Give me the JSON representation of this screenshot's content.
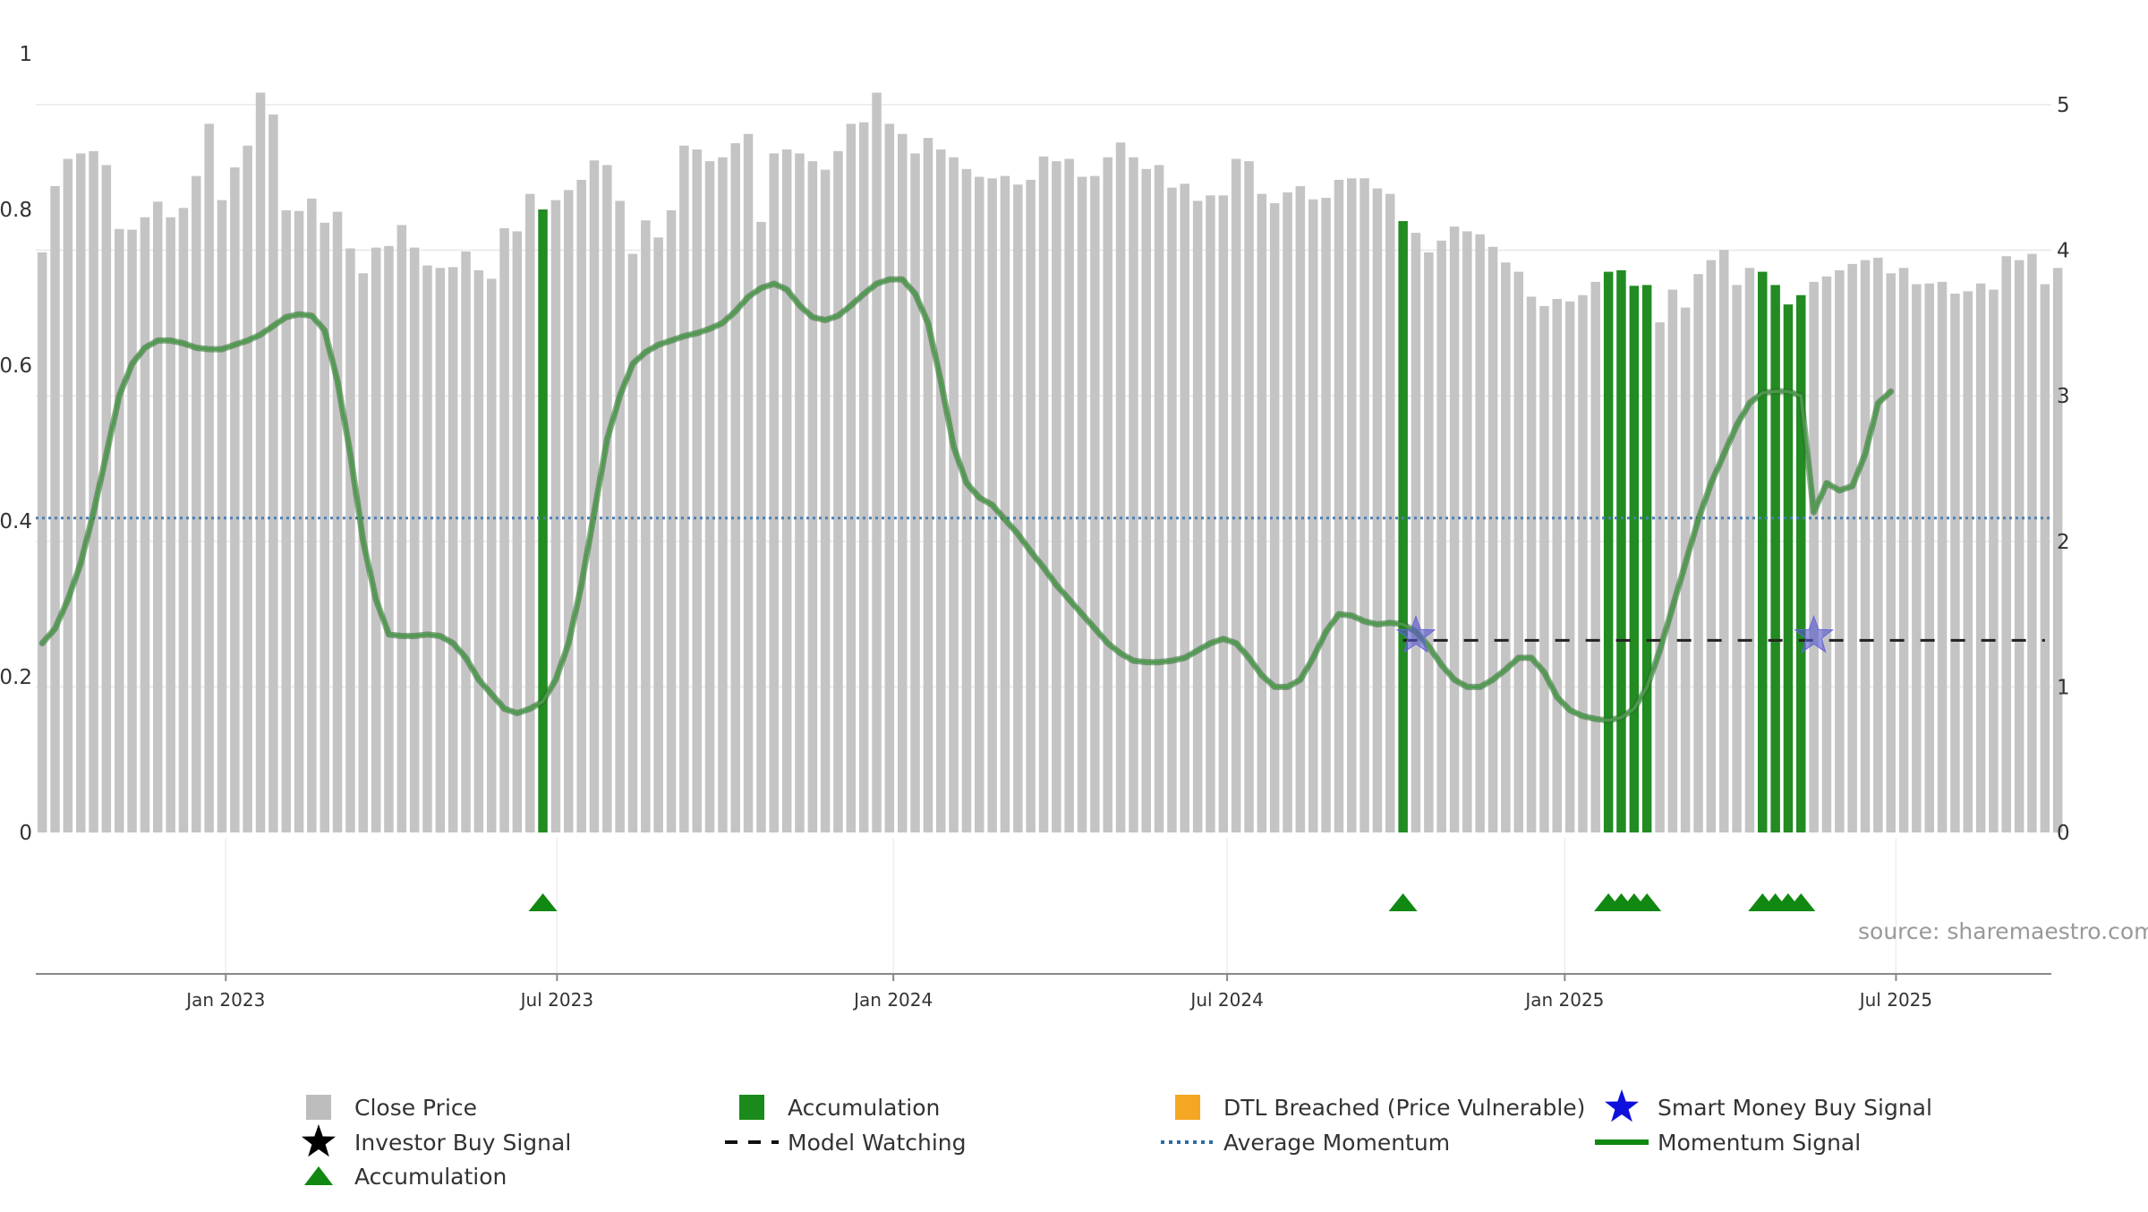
{
  "chart_data": {
    "type": "bar",
    "title": "",
    "xlabel": "",
    "ylabel": "",
    "source_text": "source: sharemaestro.com",
    "left_axis": {
      "ylim": [
        0,
        1
      ],
      "ticks": [
        0,
        0.2,
        0.4,
        0.6,
        0.8,
        1
      ],
      "tick_labels": [
        "0",
        "0.2",
        "0.4",
        "0.6",
        "0.8",
        "1"
      ]
    },
    "right_axis": {
      "ylim": [
        0,
        5.35
      ],
      "ticks": [
        0,
        1,
        2,
        3,
        4,
        5
      ],
      "tick_labels": [
        "0",
        "1",
        "2",
        "3",
        "4",
        "5"
      ]
    },
    "x_axis": {
      "range": [
        0,
        157
      ],
      "ticks": [
        {
          "pos": 14.8,
          "label": "Jan 2023"
        },
        {
          "pos": 40.6,
          "label": "Jul 2023"
        },
        {
          "pos": 66.8,
          "label": "Jan 2024"
        },
        {
          "pos": 92.8,
          "label": "Jul 2024"
        },
        {
          "pos": 119.1,
          "label": "Jan 2025"
        },
        {
          "pos": 144.9,
          "label": "Jul 2025"
        }
      ]
    },
    "series": [
      {
        "name": "Close Price",
        "type": "bar",
        "axis": "left",
        "color": "#c4c4c4",
        "values": [
          0.745,
          0.83,
          0.865,
          0.872,
          0.875,
          0.857,
          0.775,
          0.774,
          0.79,
          0.81,
          0.79,
          0.802,
          0.843,
          0.91,
          0.812,
          0.854,
          0.882,
          0.95,
          0.922,
          0.799,
          0.798,
          0.814,
          0.783,
          0.797,
          0.75,
          0.718,
          0.751,
          0.753,
          0.78,
          0.751,
          0.728,
          0.725,
          0.726,
          0.746,
          0.722,
          0.711,
          0.776,
          0.772,
          0.82,
          0.8,
          0.812,
          0.825,
          0.838,
          0.863,
          0.857,
          0.811,
          0.743,
          0.786,
          0.764,
          0.799,
          0.882,
          0.877,
          0.862,
          0.867,
          0.885,
          0.897,
          0.784,
          0.872,
          0.877,
          0.872,
          0.862,
          0.851,
          0.875,
          0.91,
          0.912,
          0.95,
          0.91,
          0.897,
          0.872,
          0.892,
          0.877,
          0.867,
          0.852,
          0.842,
          0.84,
          0.843,
          0.832,
          0.838,
          0.868,
          0.862,
          0.865,
          0.842,
          0.843,
          0.867,
          0.886,
          0.867,
          0.852,
          0.857,
          0.828,
          0.833,
          0.811,
          0.818,
          0.818,
          0.865,
          0.862,
          0.82,
          0.808,
          0.822,
          0.83,
          0.813,
          0.815,
          0.838,
          0.84,
          0.84,
          0.827,
          0.82,
          0.785,
          0.77,
          0.745,
          0.76,
          0.778,
          0.772,
          0.768,
          0.752,
          0.732,
          0.72,
          0.688,
          0.676,
          0.685,
          0.682,
          0.69,
          0.707,
          0.72,
          0.722,
          0.702,
          0.703,
          0.655,
          0.697,
          0.674,
          0.717,
          0.735,
          0.748,
          0.703,
          0.725,
          0.72,
          0.703,
          0.678,
          0.69,
          0.707,
          0.714,
          0.722,
          0.73,
          0.735,
          0.738,
          0.718,
          0.725,
          0.704,
          0.705,
          0.707,
          0.692,
          0.695,
          0.705,
          0.697,
          0.74,
          0.735,
          0.743,
          0.704,
          0.725
        ]
      },
      {
        "name": "Accumulation",
        "type": "bar-highlight",
        "axis": "left",
        "color": "#228b22",
        "indices": [
          39,
          106,
          122,
          123,
          124,
          125,
          134,
          135,
          136,
          137
        ]
      },
      {
        "name": "Momentum Signal",
        "type": "line",
        "axis": "right",
        "color": "#3a8a3a",
        "points": [
          [
            0,
            1.3
          ],
          [
            1,
            1.4
          ],
          [
            2,
            1.6
          ],
          [
            3,
            1.85
          ],
          [
            4,
            2.2
          ],
          [
            5,
            2.6
          ],
          [
            6,
            3.0
          ],
          [
            7,
            3.22
          ],
          [
            8,
            3.33
          ],
          [
            9,
            3.38
          ],
          [
            10,
            3.38
          ],
          [
            11,
            3.36
          ],
          [
            12,
            3.33
          ],
          [
            13,
            3.32
          ],
          [
            14,
            3.32
          ],
          [
            15,
            3.35
          ],
          [
            16,
            3.38
          ],
          [
            17,
            3.42
          ],
          [
            18,
            3.48
          ],
          [
            19,
            3.54
          ],
          [
            20,
            3.56
          ],
          [
            21,
            3.55
          ],
          [
            22,
            3.45
          ],
          [
            23,
            3.1
          ],
          [
            24,
            2.6
          ],
          [
            25,
            2.0
          ],
          [
            26,
            1.6
          ],
          [
            27,
            1.36
          ],
          [
            28,
            1.35
          ],
          [
            29,
            1.35
          ],
          [
            30,
            1.36
          ],
          [
            31,
            1.35
          ],
          [
            32,
            1.3
          ],
          [
            33,
            1.2
          ],
          [
            34,
            1.05
          ],
          [
            35,
            0.95
          ],
          [
            36,
            0.85
          ],
          [
            37,
            0.82
          ],
          [
            38,
            0.85
          ],
          [
            39,
            0.9
          ],
          [
            40,
            1.05
          ],
          [
            41,
            1.3
          ],
          [
            42,
            1.7
          ],
          [
            43,
            2.2
          ],
          [
            44,
            2.7
          ],
          [
            45,
            3.0
          ],
          [
            46,
            3.22
          ],
          [
            47,
            3.3
          ],
          [
            48,
            3.35
          ],
          [
            49,
            3.38
          ],
          [
            50,
            3.41
          ],
          [
            51,
            3.43
          ],
          [
            52,
            3.46
          ],
          [
            53,
            3.5
          ],
          [
            54,
            3.58
          ],
          [
            55,
            3.68
          ],
          [
            56,
            3.74
          ],
          [
            57,
            3.77
          ],
          [
            58,
            3.73
          ],
          [
            59,
            3.62
          ],
          [
            60,
            3.54
          ],
          [
            61,
            3.52
          ],
          [
            62,
            3.55
          ],
          [
            63,
            3.62
          ],
          [
            64,
            3.7
          ],
          [
            65,
            3.77
          ],
          [
            66,
            3.8
          ],
          [
            67,
            3.8
          ],
          [
            68,
            3.7
          ],
          [
            69,
            3.5
          ],
          [
            70,
            3.1
          ],
          [
            71,
            2.65
          ],
          [
            72,
            2.4
          ],
          [
            73,
            2.3
          ],
          [
            74,
            2.25
          ],
          [
            75,
            2.15
          ],
          [
            76,
            2.05
          ],
          [
            77,
            1.93
          ],
          [
            78,
            1.82
          ],
          [
            79,
            1.7
          ],
          [
            80,
            1.6
          ],
          [
            81,
            1.5
          ],
          [
            82,
            1.4
          ],
          [
            83,
            1.3
          ],
          [
            84,
            1.23
          ],
          [
            85,
            1.18
          ],
          [
            86,
            1.17
          ],
          [
            87,
            1.17
          ],
          [
            88,
            1.18
          ],
          [
            89,
            1.2
          ],
          [
            90,
            1.25
          ],
          [
            91,
            1.3
          ],
          [
            92,
            1.33
          ],
          [
            93,
            1.3
          ],
          [
            94,
            1.2
          ],
          [
            95,
            1.08
          ],
          [
            96,
            1.0
          ],
          [
            97,
            1.0
          ],
          [
            98,
            1.05
          ],
          [
            99,
            1.2
          ],
          [
            100,
            1.38
          ],
          [
            101,
            1.5
          ],
          [
            102,
            1.49
          ],
          [
            103,
            1.45
          ],
          [
            104,
            1.43
          ],
          [
            105,
            1.44
          ],
          [
            106,
            1.43
          ],
          [
            107,
            1.38
          ],
          [
            108,
            1.28
          ],
          [
            109,
            1.15
          ],
          [
            110,
            1.05
          ],
          [
            111,
            1.0
          ],
          [
            112,
            1.0
          ],
          [
            113,
            1.05
          ],
          [
            114,
            1.12
          ],
          [
            115,
            1.2
          ],
          [
            116,
            1.2
          ],
          [
            117,
            1.1
          ],
          [
            118,
            0.93
          ],
          [
            119,
            0.84
          ],
          [
            120,
            0.8
          ],
          [
            121,
            0.78
          ],
          [
            122,
            0.77
          ],
          [
            123,
            0.79
          ],
          [
            124,
            0.85
          ],
          [
            125,
            1.0
          ],
          [
            126,
            1.25
          ],
          [
            127,
            1.55
          ],
          [
            128,
            1.85
          ],
          [
            129,
            2.15
          ],
          [
            130,
            2.4
          ],
          [
            131,
            2.6
          ],
          [
            132,
            2.8
          ],
          [
            133,
            2.95
          ],
          [
            134,
            3.02
          ],
          [
            135,
            3.03
          ],
          [
            136,
            3.03
          ],
          [
            137,
            3.0
          ],
          [
            138,
            2.2
          ],
          [
            139,
            2.4
          ],
          [
            140,
            2.35
          ],
          [
            141,
            2.38
          ],
          [
            142,
            2.6
          ],
          [
            143,
            2.95
          ],
          [
            144,
            3.03
          ]
        ]
      },
      {
        "name": "Average Momentum",
        "type": "hline",
        "axis": "right",
        "color": "#4a7fb5",
        "value": 2.16
      },
      {
        "name": "Model Watching",
        "type": "hline-segment",
        "axis": "right",
        "color": "#222222",
        "value": 1.32,
        "x_range": [
          106.5,
          156.5
        ]
      },
      {
        "name": "Smart Money Buy Signal",
        "type": "marker",
        "axis": "right",
        "color": "#5555cc",
        "points": [
          [
            107.5,
            1.35
          ],
          [
            138.5,
            1.35
          ]
        ]
      },
      {
        "name": "Accumulation",
        "type": "marker-triangle",
        "color": "#118811",
        "x": [
          39,
          106,
          122,
          123,
          124,
          125,
          134,
          135,
          136,
          137
        ]
      }
    ],
    "legend": {
      "placement": "bottom",
      "entries": [
        {
          "label": "Close Price",
          "symbol": "square",
          "color": "#bdbdbd"
        },
        {
          "label": "Accumulation",
          "symbol": "square",
          "color": "#1a8a1a"
        },
        {
          "label": "DTL Breached (Price Vulnerable)",
          "symbol": "square",
          "color": "#f5a623"
        },
        {
          "label": "Smart Money Buy Signal",
          "symbol": "star",
          "color": "#1010dd"
        },
        {
          "label": "Investor Buy Signal",
          "symbol": "star",
          "color": "#000000"
        },
        {
          "label": "Model Watching",
          "symbol": "dash",
          "color": "#111111"
        },
        {
          "label": "Average Momentum",
          "symbol": "dot",
          "color": "#2e6da4"
        },
        {
          "label": "Momentum Signal",
          "symbol": "line",
          "color": "#118811"
        },
        {
          "label": "Accumulation",
          "symbol": "triangle",
          "color": "#118811"
        }
      ]
    }
  }
}
